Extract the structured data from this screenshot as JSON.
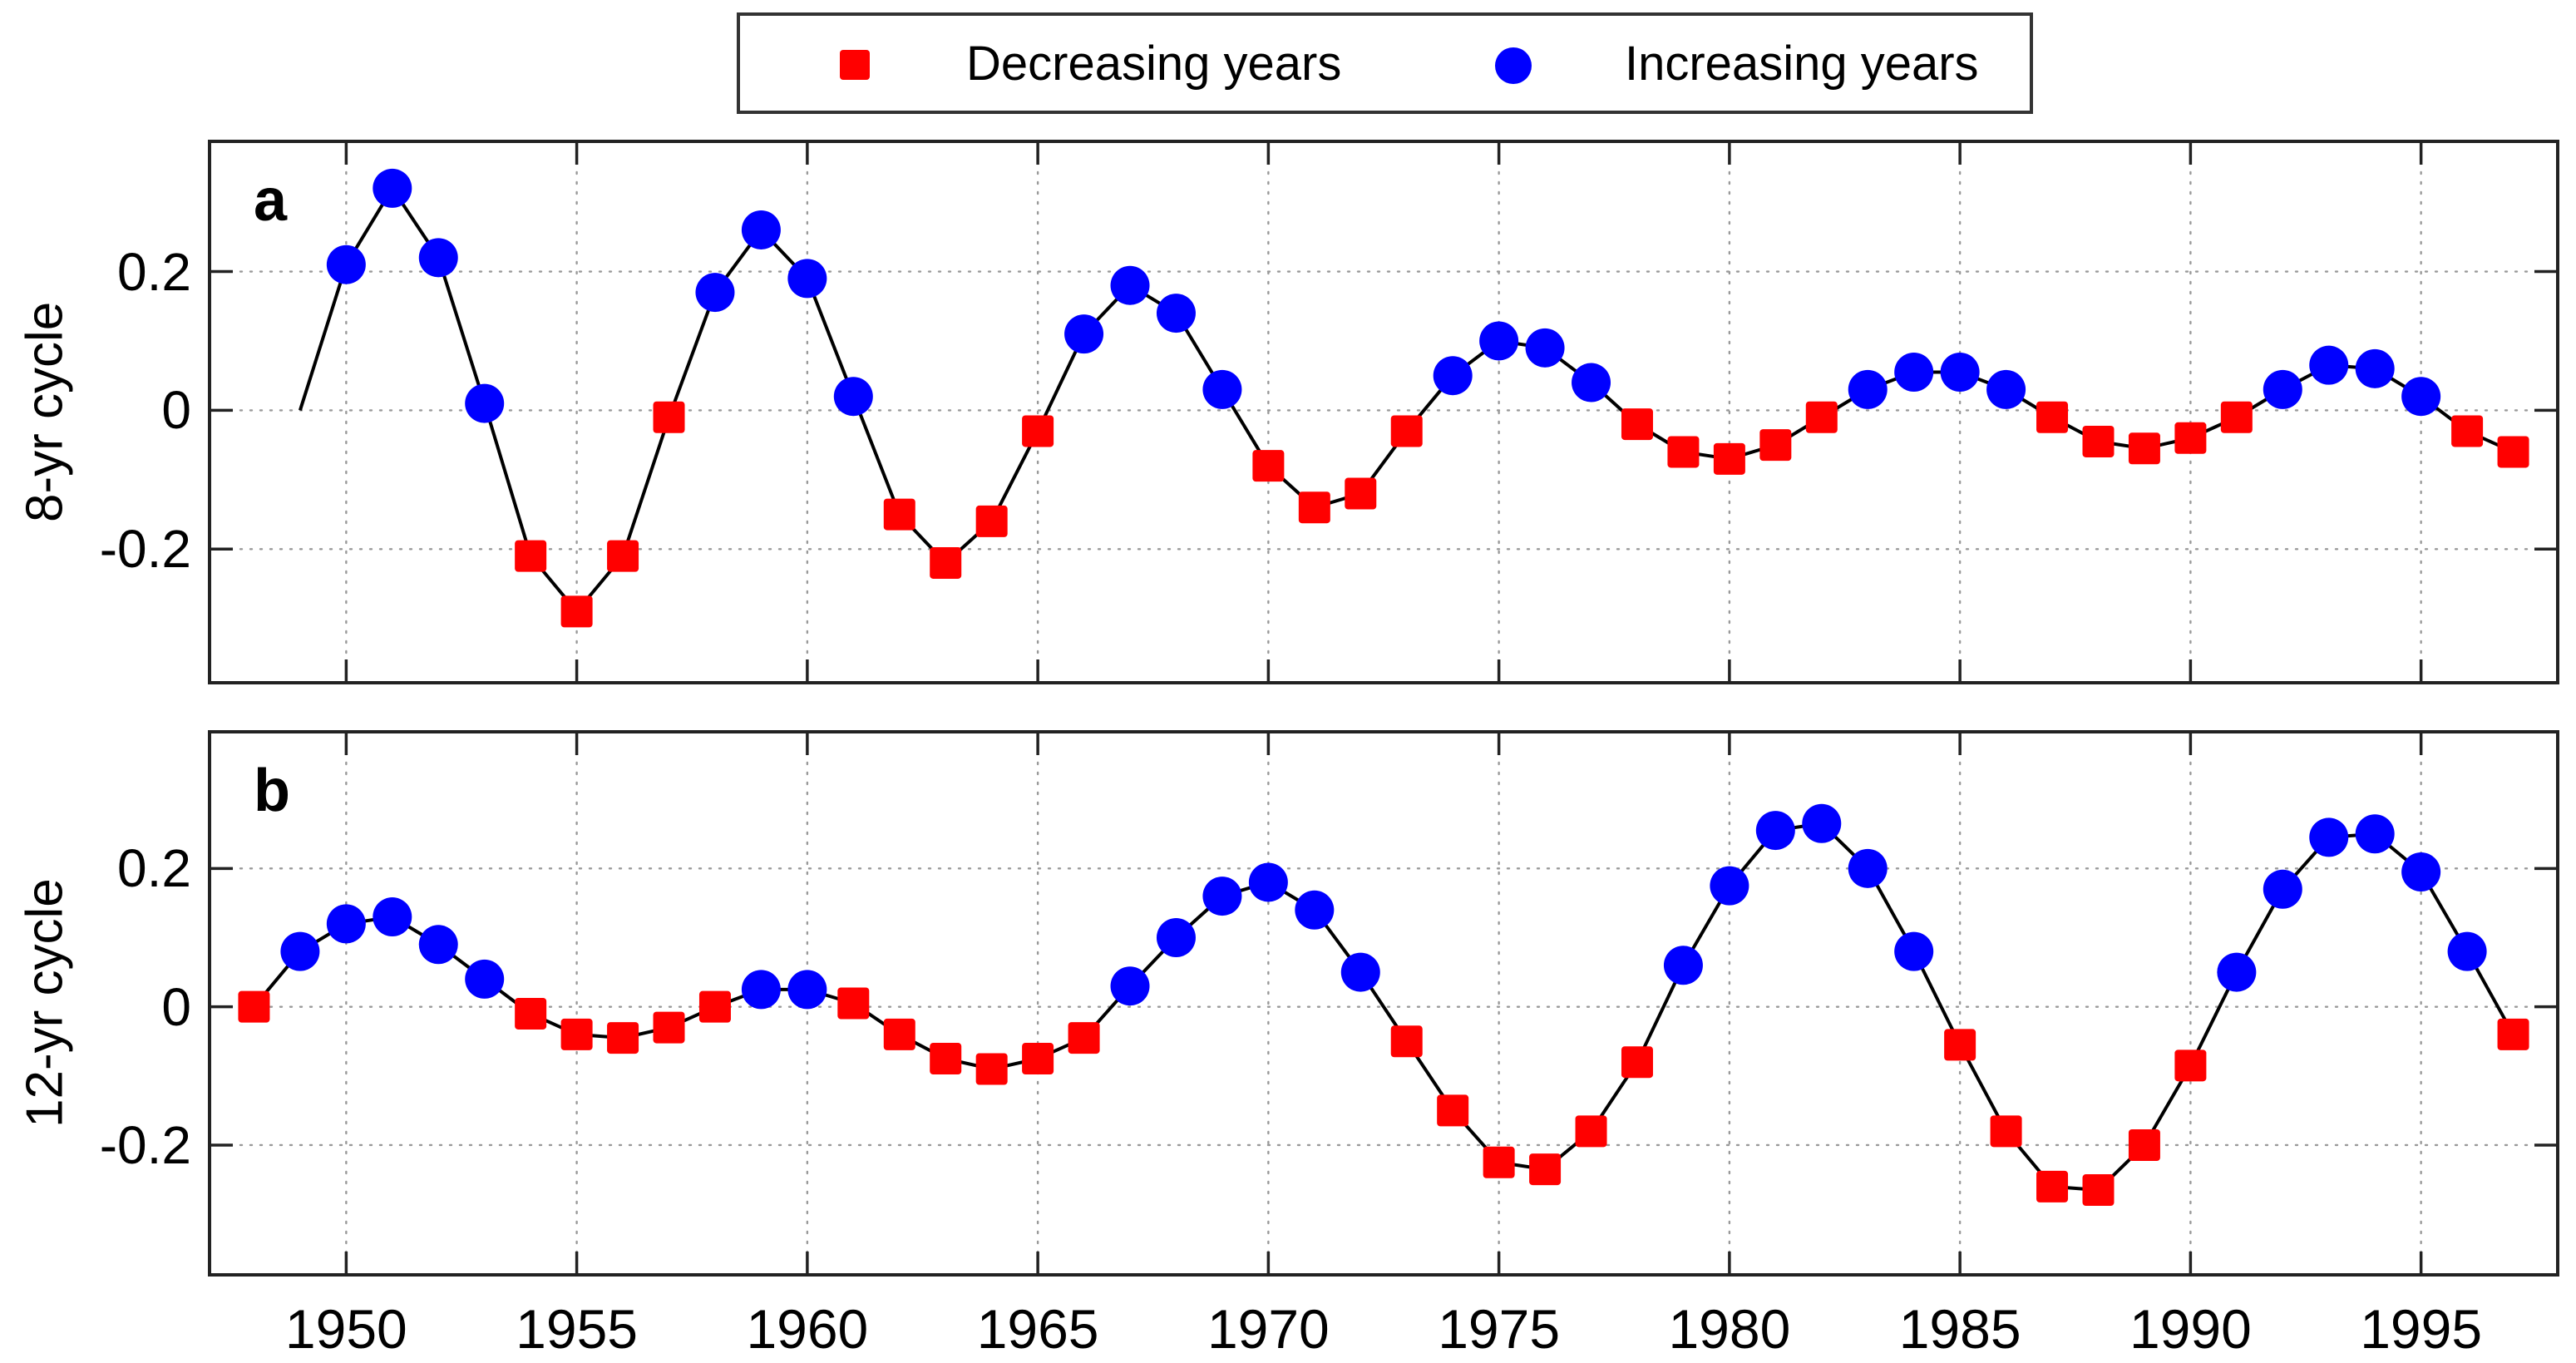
{
  "figure": {
    "background": "#ffffff",
    "legend": {
      "items": [
        {
          "label": "Decreasing years",
          "marker": "square",
          "color": "#ff0000"
        },
        {
          "label": "Increasing years",
          "marker": "circle",
          "color": "#0000ff"
        }
      ]
    },
    "colors": {
      "decreasing": "#ff0000",
      "increasing": "#0000ff",
      "line": "#000000",
      "grid": "#999999",
      "frame": "#222222"
    }
  },
  "chart_data": [
    {
      "type": "line",
      "panel_label": "a",
      "ylabel": "8-yr cycle",
      "xlabel": "",
      "xlim": [
        1947,
        1998
      ],
      "ylim": [
        -0.395,
        0.39
      ],
      "xticks": [
        1950,
        1955,
        1960,
        1965,
        1970,
        1975,
        1980,
        1985,
        1990,
        1995
      ],
      "show_xtick_labels": false,
      "yticks": [
        0.2,
        0,
        -0.2
      ],
      "ytick_labels": [
        "0.2",
        "0",
        "-0.2"
      ],
      "grid": true,
      "x": [
        1949,
        1950,
        1951,
        1952,
        1953,
        1954,
        1955,
        1956,
        1957,
        1958,
        1959,
        1960,
        1961,
        1962,
        1963,
        1964,
        1965,
        1966,
        1967,
        1968,
        1969,
        1970,
        1971,
        1972,
        1973,
        1974,
        1975,
        1976,
        1977,
        1978,
        1979,
        1980,
        1981,
        1982,
        1983,
        1984,
        1985,
        1986,
        1987,
        1988,
        1989,
        1990,
        1991,
        1992,
        1993,
        1994,
        1995,
        1996,
        1997
      ],
      "values": [
        0.0,
        0.21,
        0.32,
        0.22,
        0.01,
        -0.21,
        -0.29,
        -0.21,
        -0.01,
        0.17,
        0.26,
        0.19,
        0.02,
        -0.15,
        -0.22,
        -0.16,
        -0.03,
        0.11,
        0.18,
        0.14,
        0.03,
        -0.08,
        -0.14,
        -0.12,
        -0.03,
        0.05,
        0.1,
        0.09,
        0.04,
        -0.02,
        -0.06,
        -0.07,
        -0.05,
        -0.01,
        0.03,
        0.055,
        0.055,
        0.03,
        -0.01,
        -0.045,
        -0.055,
        -0.04,
        -0.01,
        0.03,
        0.065,
        0.06,
        0.02,
        -0.03,
        -0.06
      ],
      "markers": [
        "none",
        "inc",
        "inc",
        "inc",
        "inc",
        "dec",
        "dec",
        "dec",
        "dec",
        "inc",
        "inc",
        "inc",
        "inc",
        "dec",
        "dec",
        "dec",
        "dec",
        "inc",
        "inc",
        "inc",
        "inc",
        "dec",
        "dec",
        "dec",
        "dec",
        "inc",
        "inc",
        "inc",
        "inc",
        "dec",
        "dec",
        "dec",
        "dec",
        "dec",
        "inc",
        "inc",
        "inc",
        "inc",
        "dec",
        "dec",
        "dec",
        "dec",
        "dec",
        "inc",
        "inc",
        "inc",
        "inc",
        "dec",
        "dec"
      ]
    },
    {
      "type": "line",
      "panel_label": "b",
      "ylabel": "12-yr cycle",
      "xlabel": "",
      "xlim": [
        1947,
        1998
      ],
      "ylim": [
        -0.39,
        0.4
      ],
      "xticks": [
        1950,
        1955,
        1960,
        1965,
        1970,
        1975,
        1980,
        1985,
        1990,
        1995
      ],
      "show_xtick_labels": true,
      "xtick_labels": [
        "1950",
        "1955",
        "1960",
        "1965",
        "1970",
        "1975",
        "1980",
        "1985",
        "1990",
        "1995"
      ],
      "yticks": [
        0.2,
        0,
        -0.2
      ],
      "ytick_labels": [
        "0.2",
        "0",
        "-0.2"
      ],
      "grid": true,
      "x": [
        1948,
        1949,
        1950,
        1951,
        1952,
        1953,
        1954,
        1955,
        1956,
        1957,
        1958,
        1959,
        1960,
        1961,
        1962,
        1963,
        1964,
        1965,
        1966,
        1967,
        1968,
        1969,
        1970,
        1971,
        1972,
        1973,
        1974,
        1975,
        1976,
        1977,
        1978,
        1979,
        1980,
        1981,
        1982,
        1983,
        1984,
        1985,
        1986,
        1987,
        1988,
        1989,
        1990,
        1991,
        1992,
        1993,
        1994,
        1995,
        1996,
        1997
      ],
      "values": [
        0.0,
        0.08,
        0.12,
        0.13,
        0.09,
        0.04,
        -0.01,
        -0.04,
        -0.045,
        -0.03,
        0.0,
        0.025,
        0.025,
        0.005,
        -0.04,
        -0.075,
        -0.09,
        -0.075,
        -0.045,
        0.03,
        0.1,
        0.16,
        0.18,
        0.14,
        0.05,
        -0.05,
        -0.15,
        -0.225,
        -0.235,
        -0.18,
        -0.08,
        0.06,
        0.175,
        0.255,
        0.265,
        0.2,
        0.08,
        -0.055,
        -0.18,
        -0.26,
        -0.265,
        -0.2,
        -0.085,
        0.05,
        0.17,
        0.245,
        0.25,
        0.195,
        0.08,
        -0.04
      ],
      "markers": [
        "dec",
        "inc",
        "inc",
        "inc",
        "inc",
        "inc",
        "dec",
        "dec",
        "dec",
        "dec",
        "dec",
        "inc",
        "inc",
        "dec",
        "dec",
        "dec",
        "dec",
        "dec",
        "dec",
        "inc",
        "inc",
        "inc",
        "inc",
        "inc",
        "inc",
        "dec",
        "dec",
        "dec",
        "dec",
        "dec",
        "dec",
        "inc",
        "inc",
        "inc",
        "inc",
        "inc",
        "inc",
        "dec",
        "dec",
        "dec",
        "dec",
        "dec",
        "dec",
        "inc",
        "inc",
        "inc",
        "inc",
        "inc",
        "inc",
        "dec"
      ]
    }
  ]
}
